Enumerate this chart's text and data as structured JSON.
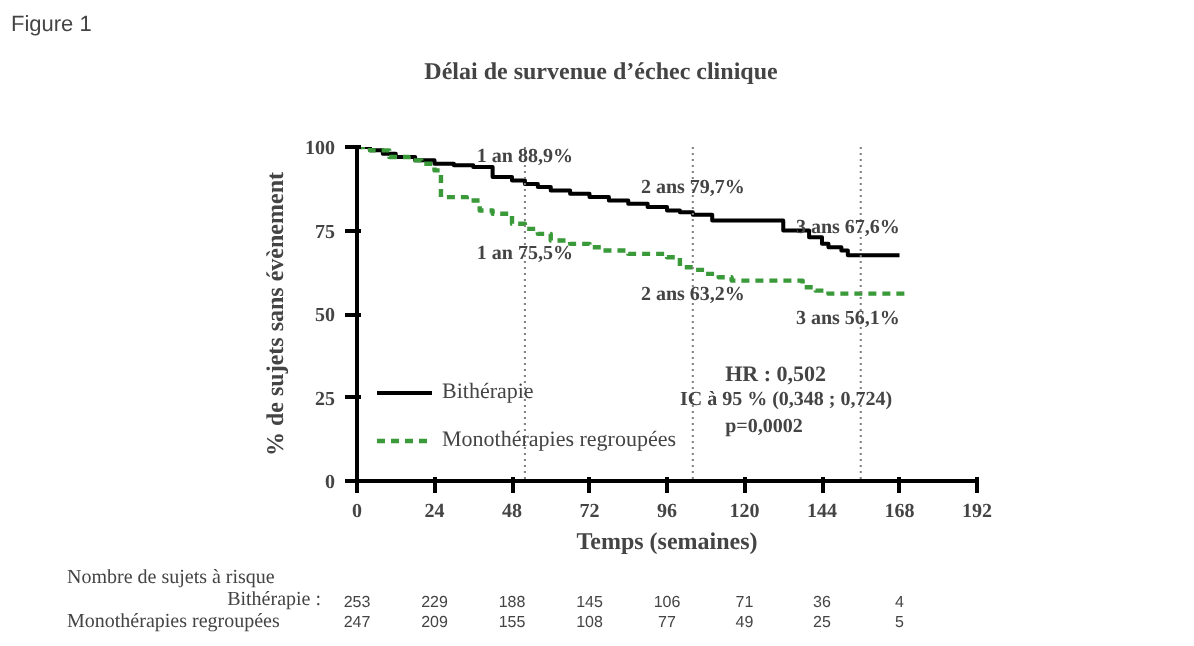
{
  "chart_data": {
    "type": "step",
    "title": "Délai de survenue d’échec clinique",
    "xlabel": "Temps (semaines)",
    "ylabel": "% de sujets sans évènement",
    "xlim": [
      0,
      192
    ],
    "ylim": [
      0,
      100
    ],
    "xticks": [
      0,
      24,
      48,
      72,
      96,
      120,
      144,
      168,
      192
    ],
    "yticks": [
      0,
      25,
      50,
      75,
      100
    ],
    "grid": false,
    "legend": "bottom left",
    "series": [
      {
        "name": "Bithérapie",
        "color": "#000000",
        "line_style": "solid",
        "x": [
          0,
          4,
          8,
          12,
          18,
          24,
          30,
          36,
          42,
          48,
          52,
          56,
          60,
          66,
          72,
          78,
          84,
          90,
          96,
          100,
          104,
          110,
          120,
          130,
          132,
          140,
          144,
          146,
          150,
          152,
          168
        ],
        "values": [
          100,
          99,
          98,
          97,
          96,
          95,
          94.5,
          94,
          91,
          90,
          88.9,
          88,
          87,
          86,
          85,
          84,
          83,
          82,
          81,
          80.5,
          79.7,
          78,
          78,
          78,
          75,
          73,
          71,
          70,
          69,
          67.6,
          67.6
        ]
      },
      {
        "name": "Monothérapies regroupées",
        "color": "#3a9a3a",
        "line_style": "dashed",
        "x": [
          0,
          4,
          10,
          16,
          20,
          24,
          26,
          34,
          38,
          42,
          48,
          52,
          56,
          60,
          66,
          72,
          76,
          84,
          90,
          96,
          100,
          104,
          108,
          112,
          116,
          124,
          132,
          138,
          142,
          146,
          170
        ],
        "values": [
          100,
          99,
          97,
          96,
          95,
          93,
          85,
          84,
          81,
          80,
          77,
          75.5,
          74,
          72,
          71,
          70,
          69,
          68,
          68,
          67,
          64,
          63.2,
          62,
          61,
          60,
          60,
          60,
          58,
          57,
          56.1,
          56.1
        ]
      }
    ],
    "ref_lines": [
      {
        "axis": "x",
        "value": 52,
        "color": "#808080",
        "line_style": "dotted"
      },
      {
        "axis": "x",
        "value": 104,
        "color": "#808080",
        "line_style": "dotted"
      },
      {
        "axis": "x",
        "value": 156,
        "color": "#808080",
        "line_style": "dotted"
      }
    ],
    "annotations": [
      {
        "text": "1 an 88,9%",
        "x": 52,
        "y": 88.9
      },
      {
        "text": "1 an 75,5%",
        "x": 52,
        "y": 75.5
      },
      {
        "text": "2 ans 79,7%",
        "x": 104,
        "y": 79.7
      },
      {
        "text": "2 ans 63,2%",
        "x": 104,
        "y": 63.2
      },
      {
        "text": "3 ans 67,6%",
        "x": 152,
        "y": 67.6
      },
      {
        "text": "3 ans 56,1%",
        "x": 152,
        "y": 56.1
      },
      "Figure 1",
      "HR : 0,502",
      "IC à 95 % (0,348 ; 0,724)",
      "p=0,0002",
      "Nombre de sujets à risque",
      "Bithérapie :",
      "Monothérapies regroupées",
      "253",
      "229",
      "188",
      "145",
      "106",
      "71",
      "36",
      "4",
      "247",
      "209",
      "155",
      "108",
      "77",
      "49",
      "25",
      "5"
    ]
  }
}
